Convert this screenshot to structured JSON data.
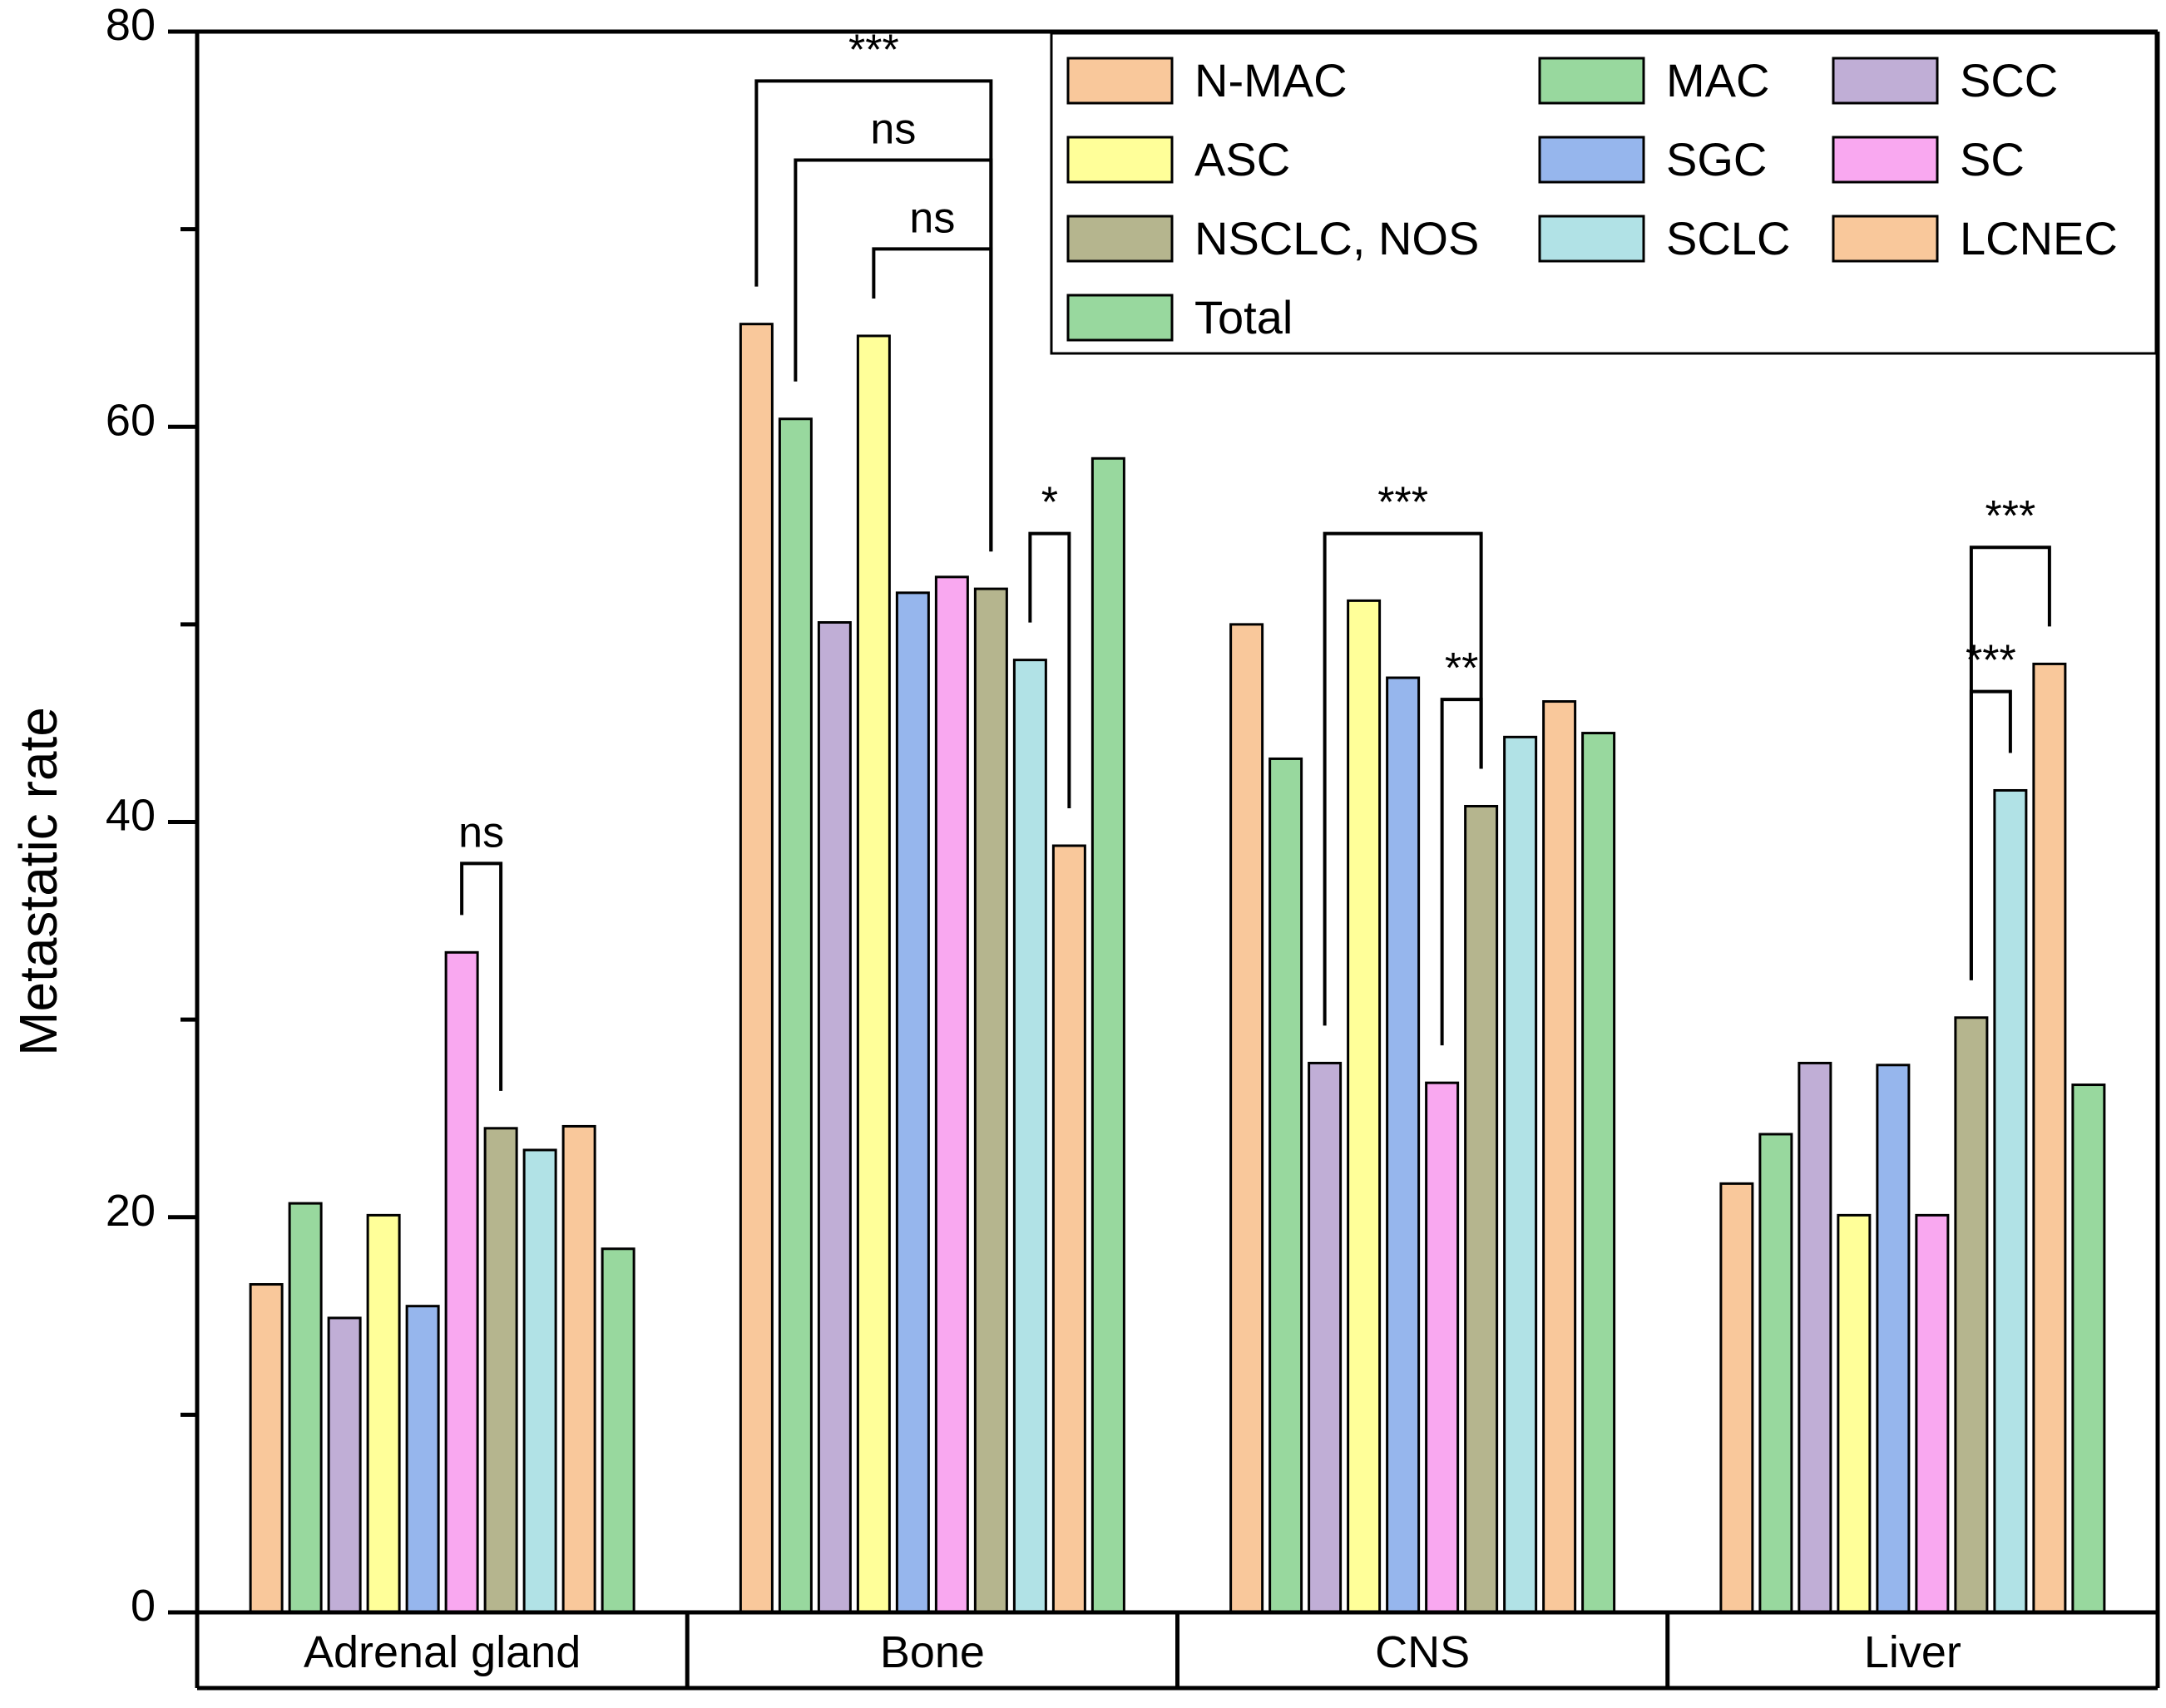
{
  "chart_data": {
    "type": "bar",
    "title": "",
    "xlabel": "",
    "ylabel": "Metastatic rate",
    "ylim": [
      0,
      80
    ],
    "yticks": [
      0,
      20,
      40,
      60,
      80
    ],
    "grid": false,
    "legend_position": "top-right",
    "categories": [
      "Adrenal gland",
      "Bone",
      "CNS",
      "Liver"
    ],
    "series": [
      {
        "name": "N-MAC",
        "color": "#F9C89B",
        "values": [
          16.6,
          65.2,
          50.0,
          21.7
        ]
      },
      {
        "name": "MAC",
        "color": "#98D89E",
        "values": [
          20.7,
          60.4,
          43.2,
          24.2
        ]
      },
      {
        "name": "SCC",
        "color": "#C0AED6",
        "values": [
          14.9,
          50.1,
          27.8,
          27.8
        ]
      },
      {
        "name": "ASC",
        "color": "#FFFF99",
        "values": [
          20.1,
          64.6,
          51.2,
          20.1
        ]
      },
      {
        "name": "SGC",
        "color": "#96B6ED",
        "values": [
          15.5,
          51.6,
          47.3,
          27.7
        ]
      },
      {
        "name": "SC",
        "color": "#F9A8F0",
        "values": [
          33.4,
          52.4,
          26.8,
          20.1
        ]
      },
      {
        "name": "NSCLC, NOS",
        "color": "#B5B58E",
        "values": [
          24.5,
          51.8,
          40.8,
          30.1
        ]
      },
      {
        "name": "SCLC",
        "color": "#B1E2E6",
        "values": [
          23.4,
          48.2,
          44.3,
          41.6
        ]
      },
      {
        "name": "LCNEC",
        "color": "#F9C89B",
        "values": [
          24.6,
          38.8,
          46.1,
          48.0
        ]
      },
      {
        "name": "Total",
        "color": "#98D89E",
        "values": [
          18.4,
          58.4,
          44.5,
          26.7
        ]
      }
    ],
    "legend_order": [
      "N-MAC",
      "MAC",
      "SCC",
      "ASC",
      "SGC",
      "SC",
      "NSCLC, NOS",
      "SCLC",
      "LCNEC",
      "Total"
    ],
    "significance": [
      {
        "category": "Adrenal gland",
        "from": "SC",
        "to": "NSCLC, NOS",
        "label": "ns",
        "level": 37.9
      },
      {
        "category": "Bone",
        "from": "N-MAC",
        "to": "NSCLC, NOS",
        "label": "***",
        "level": 77.5
      },
      {
        "category": "Bone",
        "from": "MAC",
        "to": "NSCLC, NOS",
        "label": "ns",
        "level": 73.5
      },
      {
        "category": "Bone",
        "from": "ASC",
        "to": "NSCLC, NOS",
        "label": "ns",
        "level": 69.0
      },
      {
        "category": "Bone",
        "from": "SCLC",
        "to": "LCNEC",
        "label": "*",
        "level": 54.6
      },
      {
        "category": "CNS",
        "from": "SCC",
        "to": "NSCLC, NOS",
        "label": "***",
        "level": 54.6
      },
      {
        "category": "CNS",
        "from": "SC",
        "to": "NSCLC, NOS",
        "label": "**",
        "level": 46.2
      },
      {
        "category": "Liver",
        "from": "NSCLC, NOS",
        "to": "LCNEC",
        "label": "***",
        "level": 53.9
      },
      {
        "category": "Liver",
        "from": "NSCLC, NOS",
        "to": "SCLC",
        "label": "***",
        "level": 46.6
      }
    ]
  },
  "colors": {
    "axis": "#000000",
    "bar_stroke": "#000000"
  }
}
